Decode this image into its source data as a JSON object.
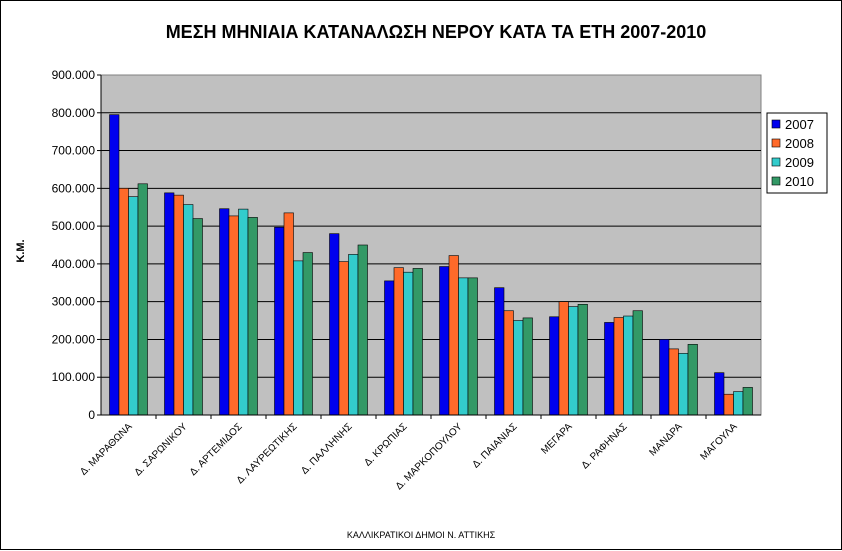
{
  "chart_data": {
    "type": "bar",
    "title": "ΜΕΣΗ ΜΗΝΙΑΙΑ ΚΑΤΑΝΑΛΩΣΗ ΝΕΡΟΥ ΚΑΤΑ ΤΑ ΕΤΗ 2007-2010",
    "xlabel": "ΚΑΛΛΙΚΡΑΤΙΚΟΙ ΔΗΜΟΙ Ν. ΑΤΤΙΚΗΣ",
    "ylabel": "Κ.Μ.",
    "ylim": [
      0,
      900000
    ],
    "yticks": [
      0,
      100000,
      200000,
      300000,
      400000,
      500000,
      600000,
      700000,
      800000,
      900000
    ],
    "ytick_labels": [
      "0",
      "100.000",
      "200.000",
      "300.000",
      "400.000",
      "500.000",
      "600.000",
      "700.000",
      "800.000",
      "900.000"
    ],
    "grid": true,
    "legend_position": "right",
    "categories": [
      "Δ. ΜΑΡΑΘΩΝΑ",
      "Δ. ΣΑΡΩΝΙΚΟΥ",
      "Δ. ΑΡΤΕΜΙΔΟΣ",
      "Δ. ΛΑΥΡΕΩΤΙΚΗΣ",
      "Δ. ΠΑΛΛΗΝΗΣ",
      "Δ. ΚΡΩΠΙΑΣ",
      "Δ. ΜΑΡΚΟΠΟΥΛΟΥ",
      "Δ. ΠΑΙΑΝΙΑΣ",
      "ΜΕΓΑΡΑ",
      "Δ. ΡΑΦΗΝΑΣ",
      "ΜΑΝΔΡΑ",
      "ΜΑΓΟΥΛΑ"
    ],
    "series": [
      {
        "name": "2007",
        "color": "#0000ee",
        "values": [
          795000,
          588000,
          546000,
          497000,
          480000,
          355000,
          393000,
          337000,
          260000,
          245000,
          200000,
          112000
        ]
      },
      {
        "name": "2008",
        "color": "#ff6a2a",
        "values": [
          600000,
          582000,
          527000,
          535000,
          406000,
          390000,
          422000,
          276000,
          300000,
          258000,
          175000,
          55000
        ]
      },
      {
        "name": "2009",
        "color": "#33cccc",
        "values": [
          578000,
          557000,
          545000,
          408000,
          425000,
          378000,
          363000,
          250000,
          287000,
          262000,
          163000,
          62000
        ]
      },
      {
        "name": "2010",
        "color": "#339966",
        "values": [
          612000,
          520000,
          523000,
          430000,
          450000,
          388000,
          363000,
          257000,
          293000,
          276000,
          187000,
          73000
        ]
      }
    ]
  }
}
